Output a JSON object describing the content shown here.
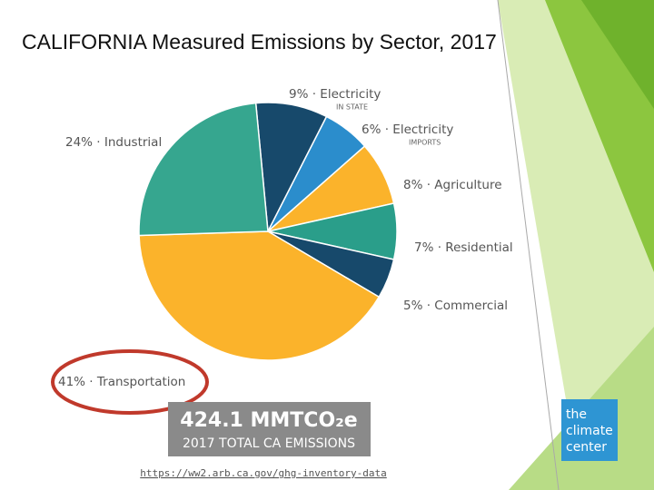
{
  "chart_data": {
    "type": "pie",
    "title": "CALIFORNIA Measured Emissions by Sector, 2017",
    "categories": [
      "9% · Electricity",
      "6% · Electricity",
      "8% · Agriculture",
      "7% · Residential",
      "5% · Commercial",
      "41% · Transportation",
      "24% · Industrial"
    ],
    "category_notes": [
      "IN STATE",
      "IMPORTS",
      null,
      null,
      null,
      null,
      null
    ],
    "values": [
      9,
      6,
      8,
      7,
      5,
      41,
      24
    ],
    "colors": [
      "#17496b",
      "#2b8dcc",
      "#fbb32b",
      "#2a9e8a",
      "#17496b",
      "#fbb32b",
      "#36a68f"
    ],
    "total_label": "424.1 MMTCO₂e",
    "total_caption": "2017 TOTAL CA EMISSIONS",
    "source_link": "https://ww2.arb.ca.gov/ghg-inventory-data",
    "logo": [
      "the",
      "climate",
      "center"
    ]
  }
}
